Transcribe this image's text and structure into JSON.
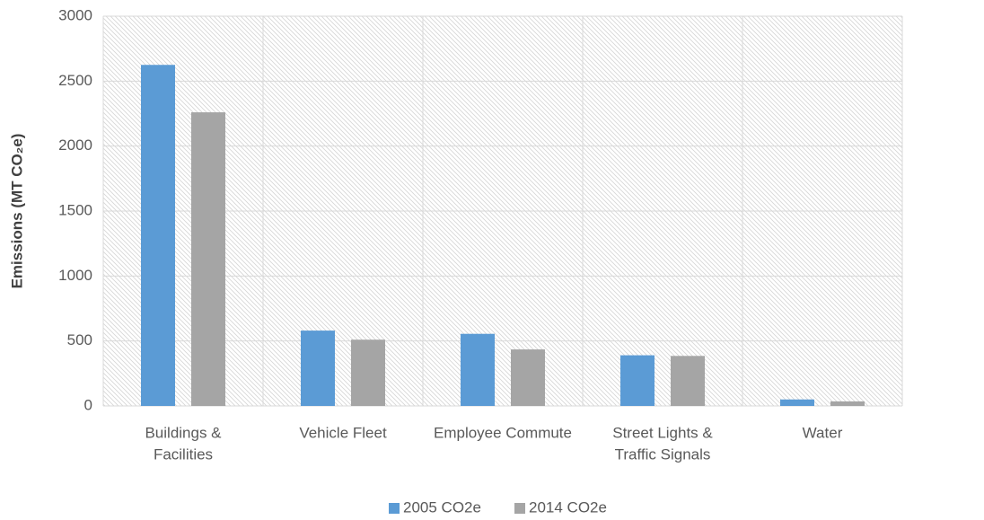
{
  "chart_data": {
    "type": "bar",
    "y_label": "Emissions (MT CO₂e)",
    "categories": [
      [
        "Buildings &",
        "Facilities"
      ],
      [
        "Vehicle Fleet"
      ],
      [
        "Employee Commute"
      ],
      [
        "Street Lights &",
        "Traffic Signals"
      ],
      [
        "Water"
      ]
    ],
    "series": [
      {
        "name": "2005 CO2e",
        "color": "#5b9bd5",
        "values": [
          2625,
          580,
          555,
          390,
          50
        ]
      },
      {
        "name": "2014 CO2e",
        "color": "#a5a5a5",
        "values": [
          2260,
          510,
          435,
          385,
          35
        ]
      }
    ],
    "ylim": [
      0,
      3000
    ],
    "yticks": [
      0,
      500,
      1000,
      1500,
      2000,
      2500,
      3000
    ],
    "grid": true,
    "legend": "bottom"
  }
}
